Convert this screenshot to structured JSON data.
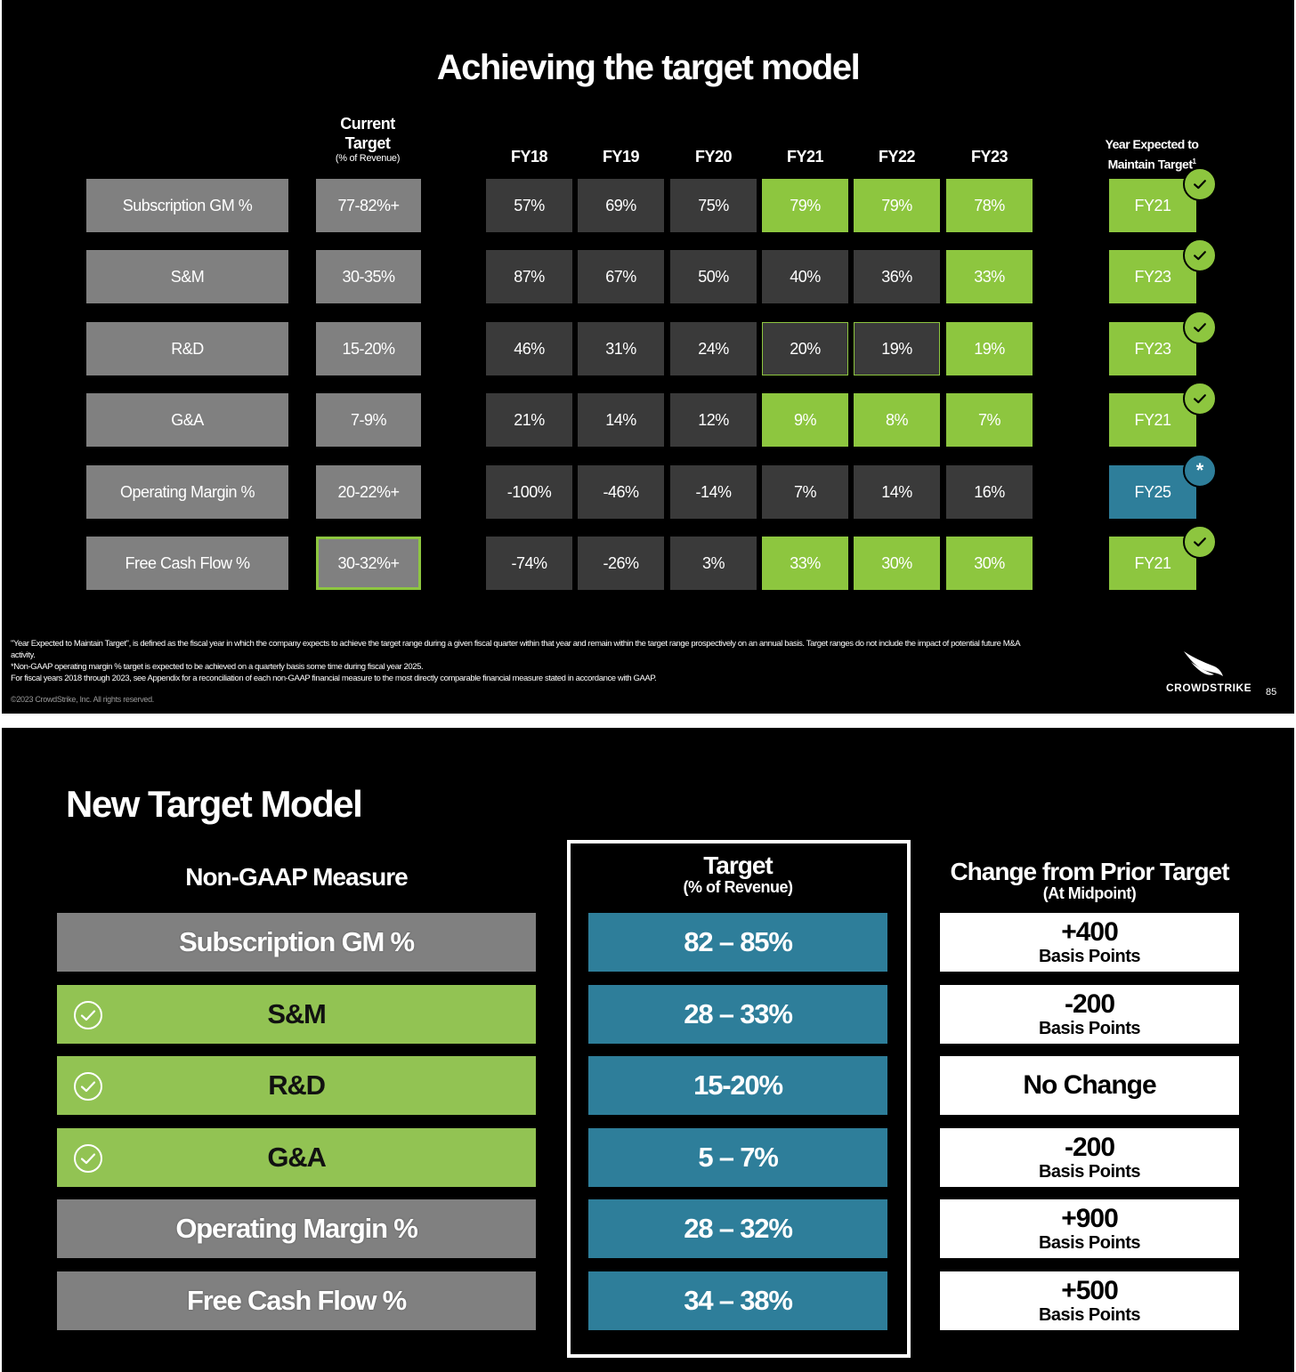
{
  "slide1": {
    "title": "Achieving the target model",
    "current_target_header": "Current Target",
    "current_target_sub": "(% of Revenue)",
    "years": [
      "FY18",
      "FY19",
      "FY20",
      "FY21",
      "FY22",
      "FY23"
    ],
    "expected_header_line1": "Year Expected to",
    "expected_header_line2": "Maintain Target",
    "expected_header_sup": "1",
    "rows": [
      {
        "label": "Subscription GM %",
        "target": "77-82%+",
        "values": [
          "57%",
          "69%",
          "75%",
          "79%",
          "79%",
          "78%"
        ],
        "status": [
          "dark",
          "dark",
          "dark",
          "green",
          "green",
          "green"
        ],
        "expected": "FY21",
        "expected_status": "met"
      },
      {
        "label": "S&M",
        "target": "30-35%",
        "values": [
          "87%",
          "67%",
          "50%",
          "40%",
          "36%",
          "33%"
        ],
        "status": [
          "dark",
          "dark",
          "dark",
          "dark",
          "dark",
          "green"
        ],
        "expected": "FY23",
        "expected_status": "met"
      },
      {
        "label": "R&D",
        "target": "15-20%",
        "values": [
          "46%",
          "31%",
          "24%",
          "20%",
          "19%",
          "19%"
        ],
        "status": [
          "dark",
          "dark",
          "dark",
          "outline",
          "outline",
          "green"
        ],
        "expected": "FY23",
        "expected_status": "met"
      },
      {
        "label": "G&A",
        "target": "7-9%",
        "values": [
          "21%",
          "14%",
          "12%",
          "9%",
          "8%",
          "7%"
        ],
        "status": [
          "dark",
          "dark",
          "dark",
          "green",
          "green",
          "green"
        ],
        "expected": "FY21",
        "expected_status": "met"
      },
      {
        "label": "Operating Margin %",
        "target": "20-22%+",
        "values": [
          "-100%",
          "-46%",
          "-14%",
          "7%",
          "14%",
          "16%"
        ],
        "status": [
          "dark",
          "dark",
          "dark",
          "dark",
          "dark",
          "dark"
        ],
        "expected": "FY25",
        "expected_status": "pending"
      },
      {
        "label": "Free Cash Flow %",
        "target": "30-32%+",
        "values": [
          "-74%",
          "-26%",
          "3%",
          "33%",
          "30%",
          "30%"
        ],
        "status": [
          "dark",
          "dark",
          "dark",
          "green",
          "green",
          "green"
        ],
        "expected": "FY21",
        "expected_status": "met"
      }
    ],
    "pending_marker": "*",
    "footnotes": [
      "\"Year Expected to Maintain Target\", is defined as the fiscal year in which the company expects to achieve the target range during a given fiscal quarter within that year and remain within the target range prospectively on an annual basis. Target ranges do not include the impact of potential future M&A activity.",
      "*Non-GAAP operating margin % target is expected to be achieved on a quarterly basis some time during fiscal year 2025.",
      "For fiscal years 2018 through 2023, see Appendix for a reconciliation of each non-GAAP financial measure to the most directly comparable financial measure stated in accordance with GAAP."
    ],
    "copyright": "©2023 CrowdStrike, Inc. All rights reserved.",
    "logo_text": "CROWDSTRIKE",
    "page_number": "85"
  },
  "slide2": {
    "title": "New Target Model",
    "measure_header": "Non-GAAP Measure",
    "target_header": "Target",
    "target_sub": "(% of Revenue)",
    "change_header": "Change from Prior Target",
    "change_sub": "(At Midpoint)",
    "rows": [
      {
        "measure": "Subscription GM %",
        "checked": false,
        "target": "82 – 85%",
        "change_value": "+400",
        "change_unit": "Basis Points"
      },
      {
        "measure": "S&M",
        "checked": true,
        "target": "28 – 33%",
        "change_value": "-200",
        "change_unit": "Basis Points"
      },
      {
        "measure": "R&D",
        "checked": true,
        "target": "15-20%",
        "change_value": "No Change",
        "change_unit": ""
      },
      {
        "measure": "G&A",
        "checked": true,
        "target": "5 – 7%",
        "change_value": "-200",
        "change_unit": "Basis Points"
      },
      {
        "measure": "Operating Margin %",
        "checked": false,
        "target": "28 – 32%",
        "change_value": "+900",
        "change_unit": "Basis Points"
      },
      {
        "measure": "Free Cash Flow %",
        "checked": false,
        "target": "34 – 38%",
        "change_value": "+500",
        "change_unit": "Basis Points"
      }
    ]
  },
  "colors": {
    "green": "#8dc63f",
    "lime": "#92c353",
    "teal": "#2e7e9a",
    "gray": "#808080",
    "dark": "#3a3a3a"
  }
}
